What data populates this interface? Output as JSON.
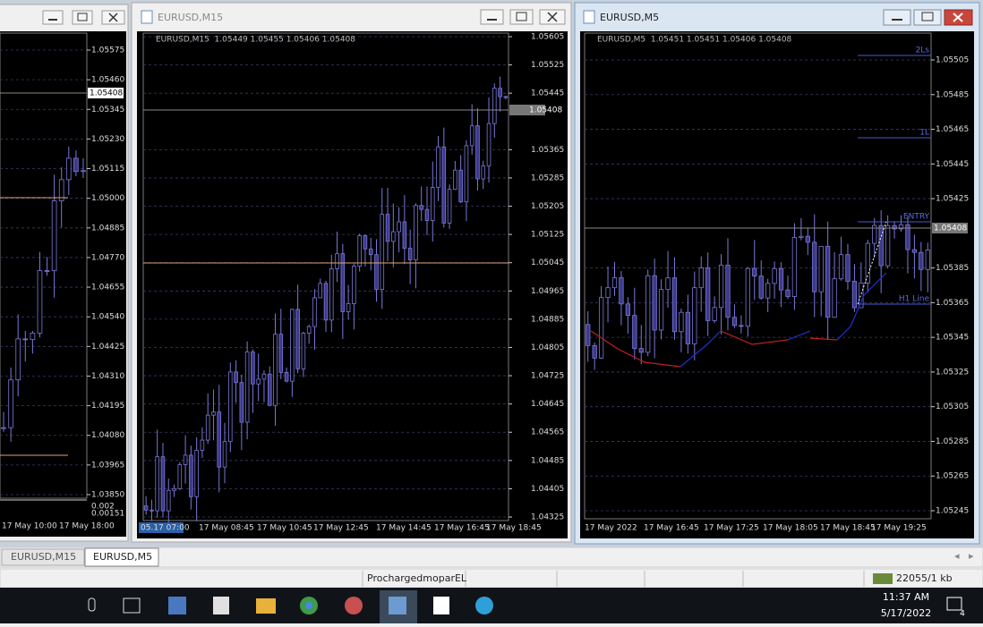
{
  "windows": [
    {
      "prices": [
        "1.05575",
        "1.05460",
        "1.05345",
        "1.05230",
        "1.05115",
        "1.05000",
        "1.04885",
        "1.04770",
        "1.04655",
        "1.04540",
        "1.04425",
        "1.04310",
        "1.04195",
        "1.04080",
        "1.03965",
        "1.03850"
      ],
      "current": "1.05408",
      "indicator": [
        "0.002",
        "0.00151"
      ],
      "time_labels": [
        "17 May 10:00",
        "17 May 18:00"
      ]
    },
    {
      "title": "EURUSD,M15",
      "header": "EURUSD,M15  1.05449 1.05455 1.05406 1.05408",
      "prices": [
        "1.05605",
        "1.05525",
        "1.05445",
        "1.05365",
        "1.05285",
        "1.05205",
        "1.05125",
        "1.05045",
        "1.04965",
        "1.04885",
        "1.04805",
        "1.04725",
        "1.04645",
        "1.04565",
        "1.04485",
        "1.04405",
        "1.04325"
      ],
      "current": "1.05408",
      "time_labels": [
        "05.17 07:00",
        "17 May 08:45",
        "17 May 10:45",
        "17 May 12:45",
        "17 May 14:45",
        "17 May 16:45",
        "17 May 18:45"
      ]
    },
    {
      "title": "EURUSD,M5",
      "header": "EURUSD,M5  1.05451 1.05451 1.05406 1.05408",
      "prices": [
        "1.05505",
        "1.05485",
        "1.05465",
        "1.05445",
        "1.05425",
        "1.05385",
        "1.05365",
        "1.05345",
        "1.05325",
        "1.05305",
        "1.05285",
        "1.05265",
        "1.05245"
      ],
      "current": "1.05408",
      "time_labels": [
        "17 May 2022",
        "17 May 16:45",
        "17 May 17:25",
        "17 May 18:05",
        "17 May 18:45",
        "17 May 19:25"
      ],
      "levels": [
        "2Ls",
        "1L",
        "ENTRY",
        "H1 Line"
      ]
    }
  ],
  "tabs": [
    "EURUSD,M15",
    "EURUSD,M5"
  ],
  "status": {
    "profile": "ProchargedmoparEL",
    "traffic": "22055/1 kb"
  },
  "taskbar": {
    "time": "11:37 AM",
    "date": "5/17/2022",
    "notifications": "4"
  }
}
